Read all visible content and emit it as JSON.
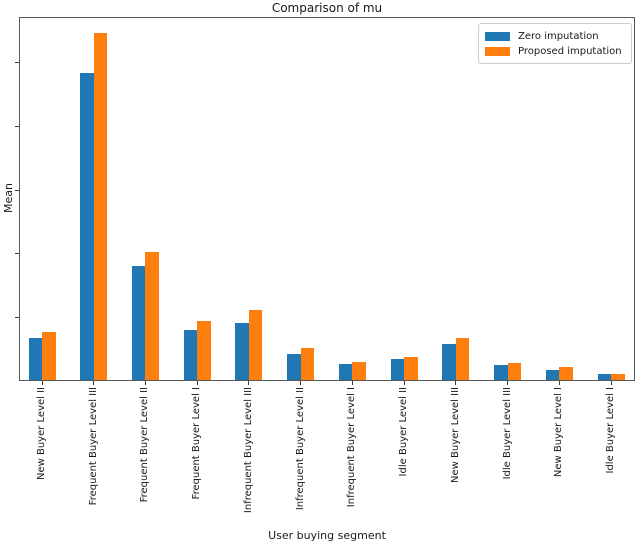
{
  "chart_data": {
    "type": "bar",
    "title": "Comparison of mu",
    "xlabel": "User buying segment",
    "ylabel": "Mean",
    "categories": [
      "New Buyer Level II",
      "Frequent Buyer Level III",
      "Frequent Buyer Level II",
      "Frequent Buyer Level I",
      "Infrequent Buyer Level III",
      "Infrequent Buyer Level II",
      "Infrequent Buyer Level I",
      "Idle Buyer Level II",
      "New Buyer Level III",
      "Idle Buyer Level III",
      "New Buyer Level I",
      "Idle Buyer Level I"
    ],
    "series": [
      {
        "name": "Zero imputation",
        "color": "#1f77b4",
        "values": [
          0.66,
          4.83,
          1.79,
          0.79,
          0.89,
          0.41,
          0.25,
          0.33,
          0.57,
          0.24,
          0.16,
          0.1
        ]
      },
      {
        "name": "Proposed imputation",
        "color": "#ff7f0e",
        "values": [
          0.76,
          5.45,
          2.01,
          0.92,
          1.1,
          0.5,
          0.29,
          0.36,
          0.66,
          0.26,
          0.2,
          0.09
        ]
      }
    ],
    "ylim": [
      0,
      5.72
    ],
    "yticks": [
      1,
      2,
      3,
      4,
      5
    ],
    "ytick_labels_visible": false,
    "grid": false,
    "legend_position": "upper right"
  }
}
